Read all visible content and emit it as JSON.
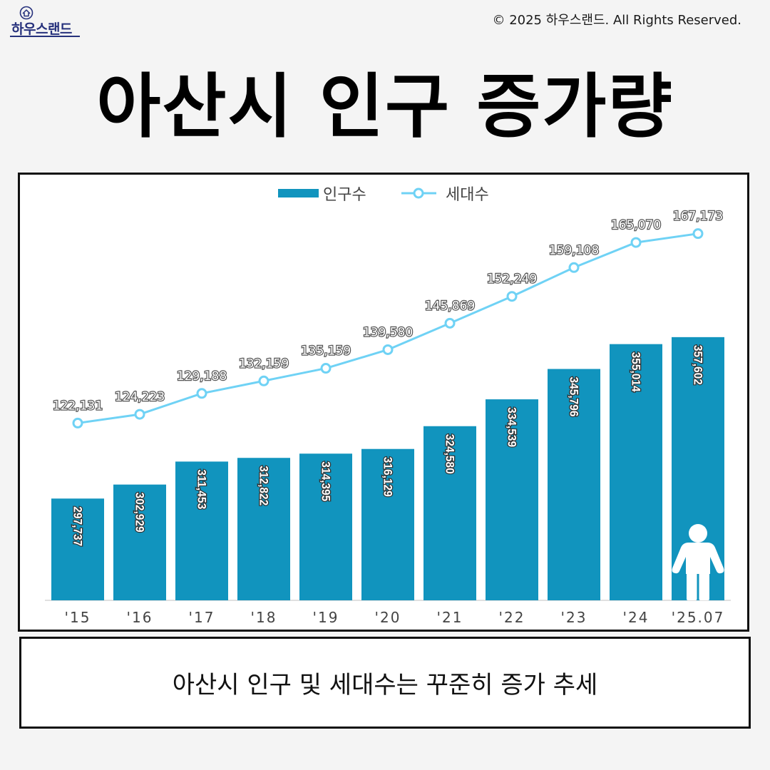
{
  "header": {
    "logo_text": "하우스랜드",
    "copyright": "© 2025 하우스랜드. All Rights Reserved."
  },
  "title": "아산시 인구 증가량",
  "chart_data": {
    "type": "bar",
    "title": "아산시 인구 증가량",
    "categories": [
      "'15",
      "'16",
      "'17",
      "'18",
      "'19",
      "'20",
      "'21",
      "'22",
      "'23",
      "'24",
      "'25.07"
    ],
    "series": [
      {
        "name": "인구수",
        "type": "bar",
        "axis": "primary",
        "color": "#1194be",
        "values": [
          297737,
          302929,
          311453,
          312822,
          314395,
          316129,
          324580,
          334539,
          345796,
          355014,
          357602
        ]
      },
      {
        "name": "세대수",
        "type": "line",
        "axis": "secondary",
        "color": "#6fd2f5",
        "values": [
          122131,
          124223,
          129188,
          132159,
          135159,
          139580,
          145869,
          152249,
          159108,
          165070,
          167173
        ]
      }
    ],
    "ylim": [
      260000,
      416000
    ],
    "y2lim": [
      80000,
      180000
    ],
    "xlabel": "",
    "ylabel": "",
    "legend": "top-center",
    "grid": false
  },
  "caption": "아산시 인구 및 세대수는 꾸준히 증가 추세"
}
